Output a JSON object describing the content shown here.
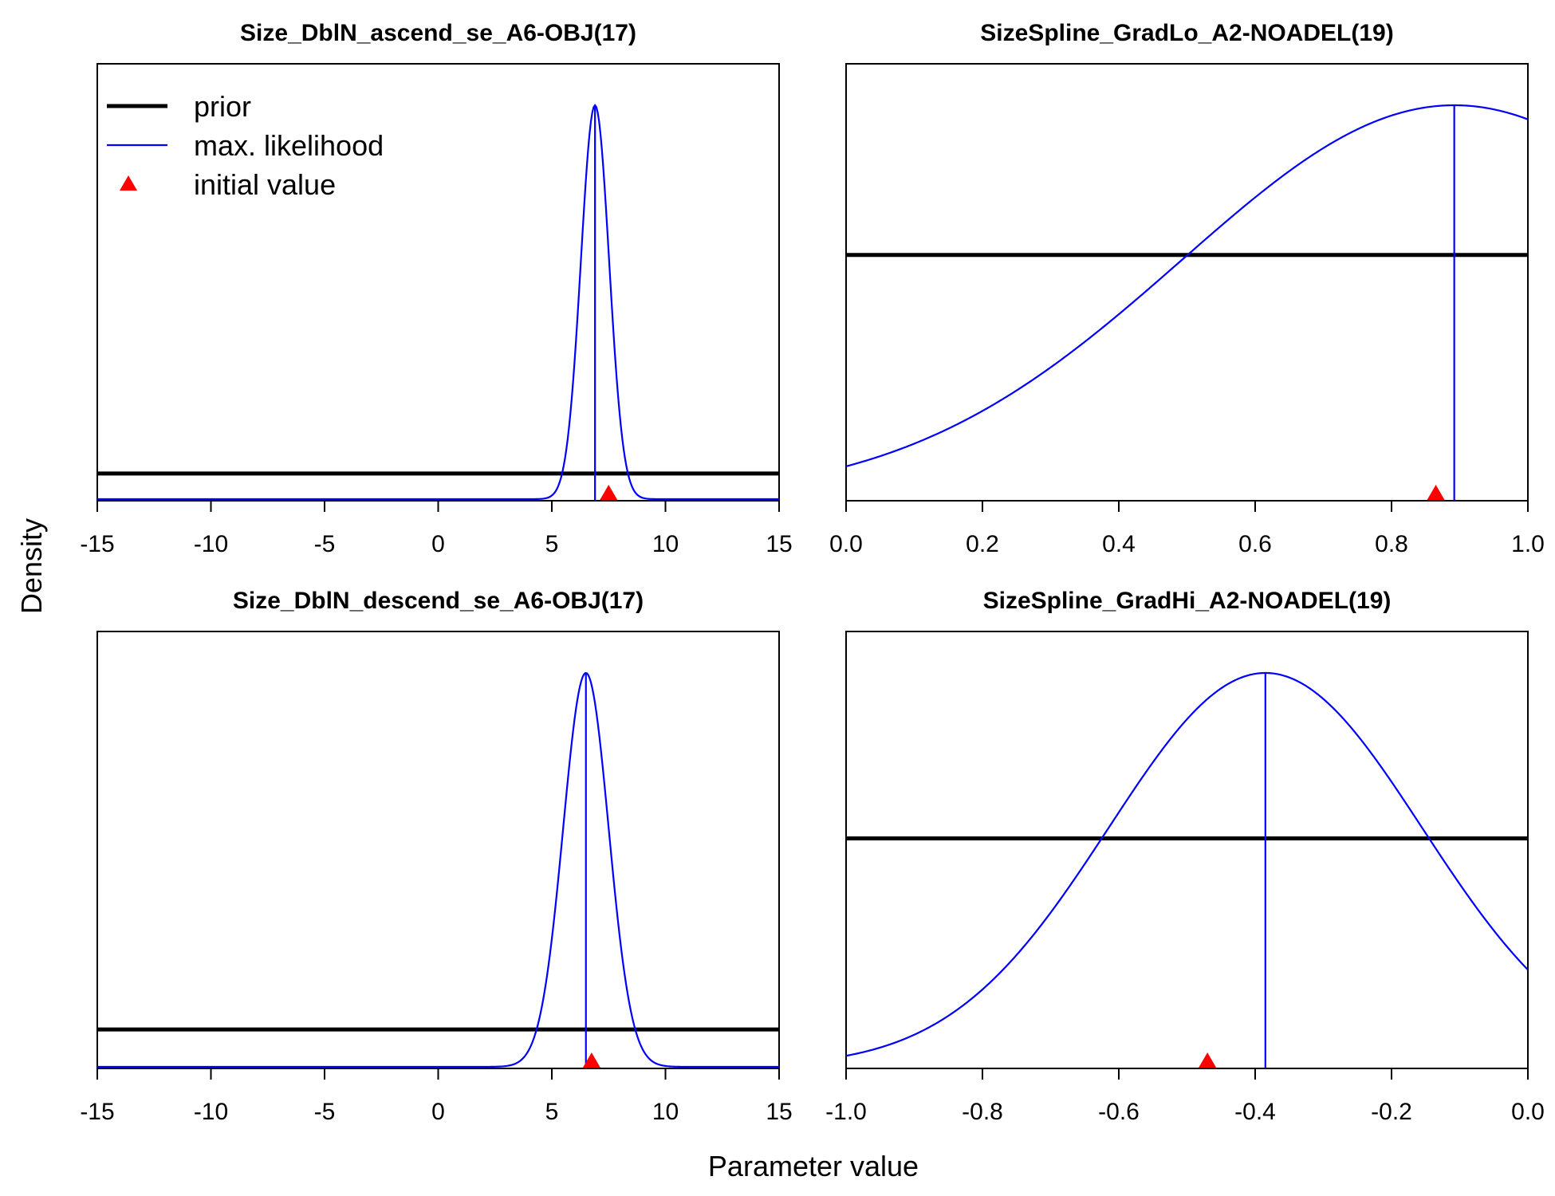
{
  "figure": {
    "ylabel": "Density",
    "xlabel": "Parameter value"
  },
  "legend": {
    "items": [
      {
        "label": "prior",
        "kind": "line",
        "color": "#000000"
      },
      {
        "label": "max. likelihood",
        "kind": "line",
        "color": "#0000ff"
      },
      {
        "label": "initial value",
        "kind": "triangle",
        "color": "#ff0000"
      }
    ]
  },
  "colors": {
    "prior": "#000000",
    "mle": "#0000ff",
    "initial": "#ff0000"
  },
  "chart_data": [
    {
      "type": "line",
      "title": "Size_DblN_ascend_se_A6-OBJ(17)",
      "xlim": [
        -15,
        15
      ],
      "xticks": [
        -15,
        -10,
        -5,
        0,
        5,
        10,
        15
      ],
      "xtick_labels": [
        "-15",
        "-10",
        "-5",
        "0",
        "5",
        "10",
        "15"
      ],
      "prior_level": 0.065,
      "likelihood": {
        "shape": "normal",
        "mean": 6.9,
        "sd": 0.62
      },
      "mle_estimate": 6.9,
      "initial_value": 7.5,
      "show_legend": true
    },
    {
      "type": "line",
      "title": "SizeSpline_GradLo_A2-NOADEL(19)",
      "xlim": [
        0.0,
        1.0
      ],
      "xticks": [
        0.0,
        0.2,
        0.4,
        0.6,
        0.8,
        1.0
      ],
      "xtick_labels": [
        "0.0",
        "0.2",
        "0.4",
        "0.6",
        "0.8",
        "1.0"
      ],
      "prior_level": 0.62,
      "likelihood": {
        "shape": "normal",
        "mean": 0.892,
        "sd": 0.4
      },
      "mle_estimate": 0.892,
      "initial_value": 0.865,
      "show_legend": false
    },
    {
      "type": "line",
      "title": "Size_DblN_descend_se_A6-OBJ(17)",
      "xlim": [
        -15,
        15
      ],
      "xticks": [
        -15,
        -10,
        -5,
        0,
        5,
        10,
        15
      ],
      "xtick_labels": [
        "-15",
        "-10",
        "-5",
        "0",
        "5",
        "10",
        "15"
      ],
      "prior_level": 0.095,
      "likelihood": {
        "shape": "normal",
        "mean": 6.5,
        "sd": 1.0
      },
      "mle_estimate": 6.5,
      "initial_value": 6.75,
      "show_legend": false
    },
    {
      "type": "line",
      "title": "SizeSpline_GradHi_A2-NOADEL(19)",
      "xlim": [
        -1.0,
        0.0
      ],
      "xticks": [
        -1.0,
        -0.8,
        -0.6,
        -0.4,
        -0.2,
        0.0
      ],
      "xtick_labels": [
        "-1.0",
        "-0.8",
        "-0.6",
        "-0.4",
        "-0.2",
        "0.0"
      ],
      "prior_level": 0.58,
      "likelihood": {
        "shape": "normal",
        "mean": -0.385,
        "sd": 0.23
      },
      "mle_estimate": -0.385,
      "initial_value": -0.47,
      "show_legend": false
    }
  ]
}
